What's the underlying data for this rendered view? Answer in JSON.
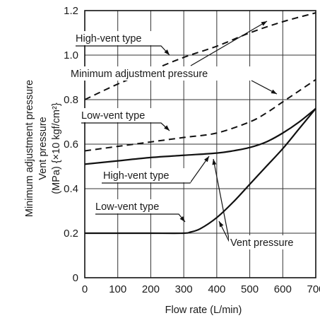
{
  "chart_data": {
    "type": "line",
    "xlabel": "Flow rate  (L/min)",
    "ylabel_lines": [
      "Minimum adjustment pressure",
      "Vent pressure",
      "(MPa) {×10 kgf/cm²}"
    ],
    "xlim": [
      0,
      700
    ],
    "ylim": [
      0,
      1.2
    ],
    "x_ticks": [
      "0",
      "100",
      "200",
      "300",
      "400",
      "500",
      "600",
      "700"
    ],
    "y_ticks": [
      "0",
      "0.2",
      "0.4",
      "0.6",
      "0.8",
      "1.0",
      "1.2"
    ],
    "grid": true,
    "series": [
      {
        "style": "dashed",
        "x": [
          0,
          100,
          200,
          300,
          400,
          500,
          600,
          700
        ],
        "y": [
          0.8,
          0.87,
          0.93,
          0.99,
          1.04,
          1.1,
          1.15,
          1.19
        ]
      },
      {
        "style": "dashed",
        "x": [
          0,
          100,
          200,
          300,
          400,
          500,
          550,
          600,
          650,
          700
        ],
        "y": [
          0.57,
          0.59,
          0.61,
          0.63,
          0.65,
          0.7,
          0.74,
          0.79,
          0.84,
          0.89
        ]
      },
      {
        "style": "solid",
        "x": [
          0,
          100,
          200,
          300,
          400,
          450,
          500,
          550,
          600,
          650,
          700
        ],
        "y": [
          0.51,
          0.525,
          0.54,
          0.55,
          0.56,
          0.57,
          0.585,
          0.61,
          0.65,
          0.7,
          0.76
        ]
      },
      {
        "style": "solid",
        "x": [
          0,
          100,
          200,
          300,
          320,
          350,
          400,
          450,
          500,
          550,
          600,
          650,
          700
        ],
        "y": [
          0.2,
          0.2,
          0.2,
          0.2,
          0.205,
          0.22,
          0.27,
          0.34,
          0.42,
          0.5,
          0.58,
          0.67,
          0.76
        ]
      }
    ],
    "annotations": [
      {
        "text": "High-vent type"
      },
      {
        "text": "Minimum adjustment pressure"
      },
      {
        "text": "Low-vent type"
      },
      {
        "text": "High-vent type"
      },
      {
        "text": "Low-vent type"
      },
      {
        "text": "Vent pressure"
      }
    ]
  }
}
